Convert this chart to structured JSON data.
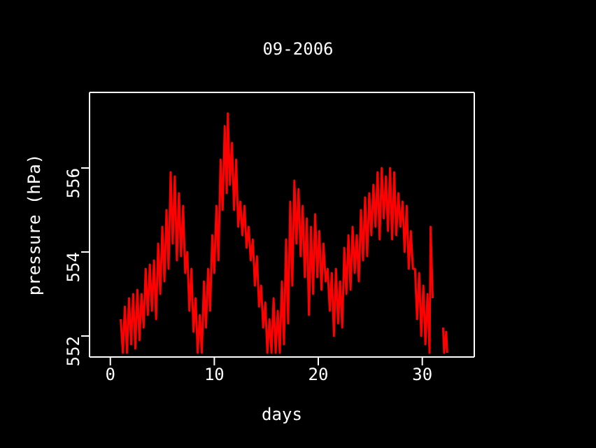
{
  "chart_data": {
    "type": "line",
    "title": "09-2006",
    "xlabel": "days",
    "ylabel": "pressure (hPa)",
    "xlim": [
      -2,
      35
    ],
    "xticks": [
      0,
      10,
      20,
      30
    ],
    "ylim": [
      551.5,
      557.8
    ],
    "yticks": [
      552,
      554,
      556
    ],
    "marker": "none",
    "line_style": "solid",
    "x": [
      1.0,
      1.2,
      1.4,
      1.6,
      1.8,
      2.0,
      2.2,
      2.4,
      2.6,
      2.8,
      3.0,
      3.2,
      3.4,
      3.6,
      3.8,
      4.0,
      4.2,
      4.4,
      4.6,
      4.8,
      5.0,
      5.2,
      5.4,
      5.6,
      5.8,
      6.0,
      6.2,
      6.4,
      6.6,
      6.8,
      7.0,
      7.2,
      7.4,
      7.6,
      7.8,
      8.0,
      8.2,
      8.4,
      8.6,
      8.8,
      9.0,
      9.2,
      9.4,
      9.6,
      9.8,
      10.0,
      10.2,
      10.4,
      10.6,
      10.8,
      11.0,
      11.2,
      11.3,
      11.5,
      11.7,
      11.9,
      12.1,
      12.3,
      12.5,
      12.7,
      12.9,
      13.1,
      13.3,
      13.5,
      13.7,
      13.9,
      14.1,
      14.3,
      14.5,
      14.7,
      14.9,
      15.1,
      15.3,
      15.5,
      15.7,
      15.9,
      16.1,
      16.3,
      16.5,
      16.7,
      16.9,
      17.1,
      17.3,
      17.5,
      17.7,
      17.9,
      18.1,
      18.3,
      18.5,
      18.7,
      18.9,
      19.1,
      19.3,
      19.5,
      19.7,
      19.9,
      20.1,
      20.3,
      20.5,
      20.7,
      20.9,
      21.1,
      21.3,
      21.5,
      21.7,
      21.9,
      22.1,
      22.3,
      22.5,
      22.7,
      22.9,
      23.1,
      23.3,
      23.5,
      23.7,
      23.9,
      24.1,
      24.3,
      24.5,
      24.7,
      24.9,
      25.1,
      25.3,
      25.5,
      25.7,
      25.9,
      26.1,
      26.3,
      26.5,
      26.7,
      26.9,
      27.1,
      27.3,
      27.5,
      27.7,
      27.9,
      28.1,
      28.3,
      28.5,
      28.7,
      28.9,
      29.1,
      29.3,
      29.5,
      29.7,
      29.9,
      30.1,
      30.3,
      30.5,
      30.7,
      30.8,
      31.0,
      31.4,
      32.0,
      32.1,
      32.3,
      32.4
    ],
    "series": [
      {
        "color": "#ff0000",
        "values": [
          552.4,
          551.6,
          552.7,
          551.6,
          552.9,
          551.8,
          553.0,
          551.7,
          553.1,
          551.9,
          553.0,
          552.2,
          553.6,
          552.5,
          553.7,
          552.6,
          553.8,
          552.4,
          554.2,
          553.0,
          554.6,
          553.3,
          555.0,
          553.6,
          555.9,
          554.2,
          555.8,
          553.8,
          555.4,
          553.9,
          555.1,
          553.5,
          554.0,
          552.6,
          553.6,
          552.1,
          552.9,
          551.6,
          552.5,
          551.6,
          553.3,
          552.2,
          553.6,
          552.6,
          554.4,
          553.5,
          555.1,
          553.8,
          556.2,
          555.0,
          557.0,
          555.4,
          557.3,
          555.6,
          556.6,
          555.0,
          556.2,
          554.6,
          555.2,
          554.4,
          555.1,
          554.1,
          554.6,
          553.8,
          554.3,
          553.2,
          553.9,
          552.7,
          553.2,
          552.2,
          552.8,
          551.6,
          552.4,
          551.6,
          552.9,
          551.6,
          552.6,
          551.6,
          553.3,
          551.8,
          554.3,
          552.3,
          555.2,
          553.2,
          555.7,
          554.2,
          555.5,
          553.9,
          555.1,
          553.4,
          554.8,
          552.5,
          554.6,
          553.0,
          554.9,
          553.4,
          554.5,
          553.1,
          554.2,
          553.3,
          553.6,
          552.6,
          553.5,
          552.0,
          553.6,
          552.3,
          553.3,
          552.2,
          554.1,
          553.0,
          554.4,
          553.1,
          554.6,
          553.5,
          554.4,
          553.3,
          555.0,
          553.8,
          555.3,
          553.9,
          555.4,
          554.4,
          555.6,
          554.6,
          555.9,
          554.3,
          556.0,
          554.8,
          555.8,
          554.5,
          556.0,
          554.3,
          555.9,
          554.4,
          555.4,
          554.6,
          555.2,
          554.0,
          555.1,
          553.6,
          554.5,
          553.6,
          553.6,
          552.4,
          553.5,
          552.0,
          553.2,
          551.8,
          553.0,
          551.6,
          554.6,
          552.9,
          null,
          552.2,
          551.6,
          552.1,
          551.6
        ]
      }
    ]
  }
}
